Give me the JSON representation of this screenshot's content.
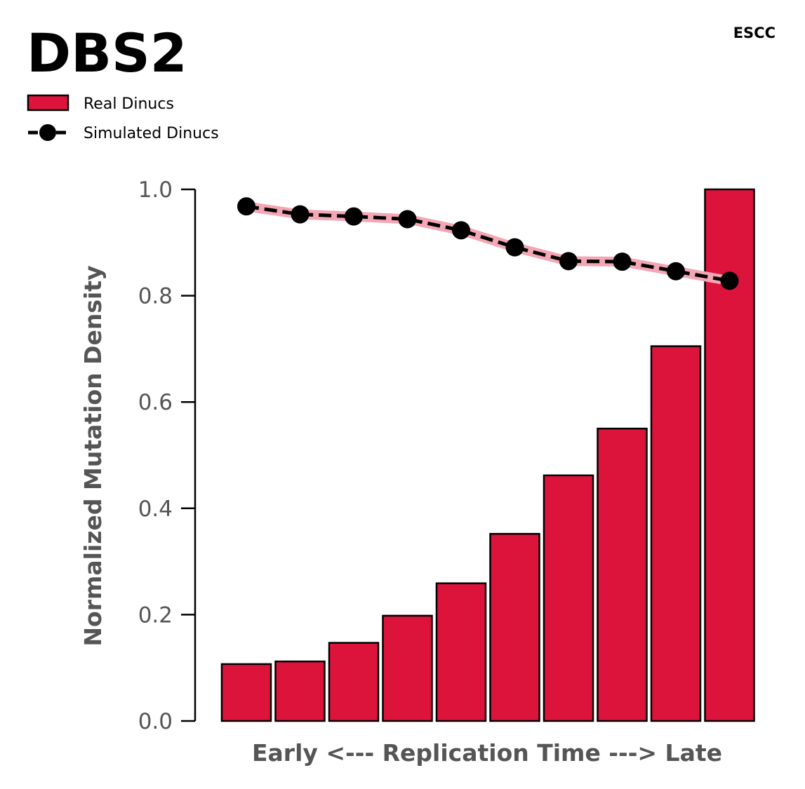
{
  "title": "DBS2",
  "cancer_type": "ESCC",
  "colors": {
    "real": "#DC143C",
    "simulated_line": "#000000",
    "simulated_band": "#F4A6B5",
    "axis": "#000000",
    "text": "#555555"
  },
  "legend": {
    "real_label": "Real Dinucs",
    "simulated_label": "Simulated Dinucs"
  },
  "chart_data": {
    "type": "bar",
    "title": "DBS2",
    "xlabel": "Early <--- Replication Time ---> Late",
    "ylabel": "Normalized Mutation Density",
    "ylim": [
      0.0,
      1.0
    ],
    "yticks": [
      "0.0",
      "0.2",
      "0.4",
      "0.6",
      "0.8",
      "1.0"
    ],
    "grid": false,
    "legend_position": "top-left",
    "series": [
      {
        "name": "Real Dinucs",
        "type": "bar",
        "values": [
          0.107,
          0.112,
          0.147,
          0.198,
          0.259,
          0.352,
          0.462,
          0.55,
          0.705,
          1.0
        ]
      },
      {
        "name": "Simulated Dinucs",
        "type": "line",
        "values": [
          0.968,
          0.953,
          0.949,
          0.944,
          0.923,
          0.891,
          0.865,
          0.864,
          0.846,
          0.828
        ]
      }
    ]
  }
}
